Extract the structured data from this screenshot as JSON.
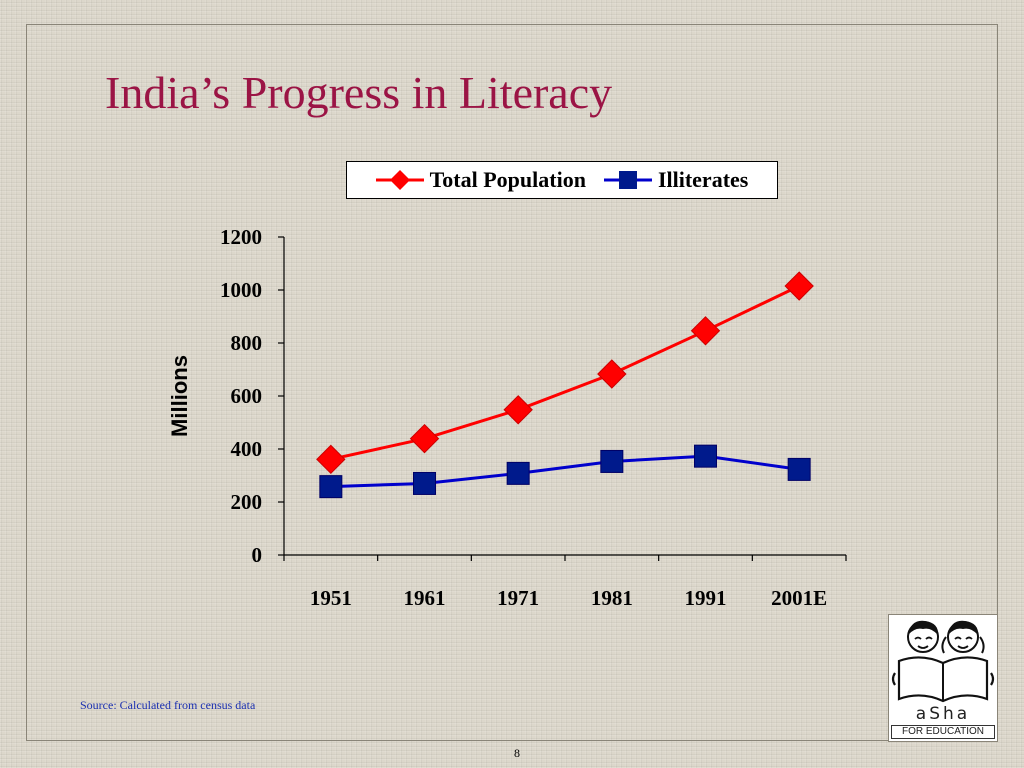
{
  "slide": {
    "title": "India’s Progress in Literacy",
    "source": "Source: Calculated from census data",
    "page_number": "8"
  },
  "logo": {
    "brand_text": "aSha",
    "tagline": "FOR EDUCATION"
  },
  "chart_data": {
    "type": "line",
    "categories": [
      "1951",
      "1961",
      "1971",
      "1981",
      "1991",
      "2001E"
    ],
    "series": [
      {
        "name": "Total Population",
        "values": [
          361,
          439,
          548,
          683,
          846,
          1015
        ],
        "color": "#ff0000",
        "marker": "diamond"
      },
      {
        "name": "Illiterates",
        "values": [
          258,
          270,
          308,
          353,
          373,
          323
        ],
        "color": "#0000cc",
        "marker": "square"
      }
    ],
    "ylabel": "Millions",
    "xlabel": "",
    "ylim": [
      0,
      1200
    ],
    "yticks": [
      0,
      200,
      400,
      600,
      800,
      1000,
      1200
    ],
    "grid": false,
    "legend": "top"
  }
}
